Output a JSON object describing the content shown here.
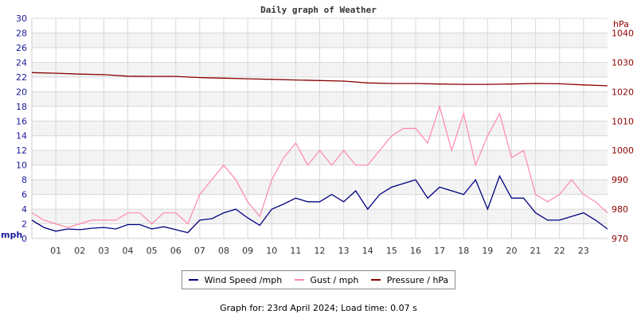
{
  "chart_data": {
    "type": "line",
    "title": "Daily graph of Weather",
    "x_ticks": [
      "01",
      "02",
      "03",
      "04",
      "05",
      "06",
      "07",
      "08",
      "09",
      "10",
      "11",
      "12",
      "13",
      "14",
      "15",
      "16",
      "17",
      "18",
      "19",
      "20",
      "21",
      "22",
      "23"
    ],
    "x_hours": [
      0,
      0.5,
      1,
      1.5,
      2,
      2.5,
      3,
      3.5,
      4,
      4.5,
      5,
      5.5,
      6,
      6.5,
      7,
      7.5,
      8,
      8.5,
      9,
      9.5,
      10,
      10.5,
      11,
      11.5,
      12,
      12.5,
      13,
      13.5,
      14,
      14.5,
      15,
      15.5,
      16,
      16.5,
      17,
      17.5,
      18,
      18.5,
      19,
      19.5,
      20,
      20.5,
      21,
      21.5,
      22,
      22.5,
      23,
      23.5,
      24
    ],
    "left_axis": {
      "label": "mph",
      "range": [
        0,
        30
      ],
      "ticks": [
        0,
        2,
        4,
        6,
        8,
        10,
        12,
        14,
        16,
        18,
        20,
        22,
        24,
        26,
        28,
        30
      ],
      "color": "#1a1a99"
    },
    "right_axis": {
      "label": "hPa",
      "range": [
        970,
        1045
      ],
      "ticks": [
        970,
        980,
        990,
        1000,
        1010,
        1020,
        1030,
        1040
      ],
      "color": "#8b0000"
    },
    "grid": true,
    "series": [
      {
        "name": "Wind Speed /mph",
        "color": "#000080",
        "axis": "left",
        "values": [
          2.5,
          1.5,
          1.0,
          1.3,
          1.2,
          1.4,
          1.5,
          1.3,
          1.9,
          1.9,
          1.3,
          1.6,
          1.2,
          0.8,
          2.5,
          2.7,
          3.5,
          4.0,
          2.8,
          1.8,
          4.0,
          4.7,
          5.5,
          5.0,
          5.0,
          6.0,
          5.0,
          6.5,
          4.0,
          6.0,
          7.0,
          7.5,
          8.0,
          5.5,
          7.0,
          6.5,
          6.0,
          8.0,
          4.0,
          8.5,
          5.5,
          5.5,
          3.5,
          2.5,
          2.5,
          3.0,
          3.5,
          2.5,
          1.3
        ]
      },
      {
        "name": "Gust / mph",
        "color": "#ff88aa",
        "axis": "left",
        "values": [
          3.5,
          2.5,
          2,
          1.5,
          2,
          2.5,
          2.5,
          2.5,
          3.5,
          3.5,
          2,
          3.5,
          3.5,
          2,
          6,
          8,
          10,
          8,
          5,
          3,
          8,
          11,
          13,
          10,
          12,
          10,
          12,
          10,
          10,
          12,
          14,
          15,
          15,
          13,
          18,
          12,
          17,
          10,
          14,
          17,
          11,
          12,
          6,
          5,
          6,
          8,
          6,
          5,
          3.5
        ]
      },
      {
        "name": "Pressure / hPa",
        "color": "#8b0000",
        "axis": "right",
        "x_hours": [
          0,
          1,
          2,
          3,
          4,
          5,
          6,
          7,
          8,
          9,
          10,
          11,
          12,
          13,
          14,
          15,
          16,
          17,
          18,
          19,
          20,
          21,
          22,
          23,
          24
        ],
        "values": [
          1026.5,
          1026.3,
          1026,
          1025.8,
          1025.3,
          1025.2,
          1025.2,
          1024.8,
          1024.6,
          1024.4,
          1024.2,
          1024,
          1023.8,
          1023.6,
          1023,
          1022.8,
          1022.8,
          1022.6,
          1022.5,
          1022.5,
          1022.6,
          1022.8,
          1022.7,
          1022.3,
          1022
        ]
      }
    ],
    "legend_placement": "bottom"
  },
  "footer": "Graph for: 23rd April 2024; Load time: 0.07 s"
}
